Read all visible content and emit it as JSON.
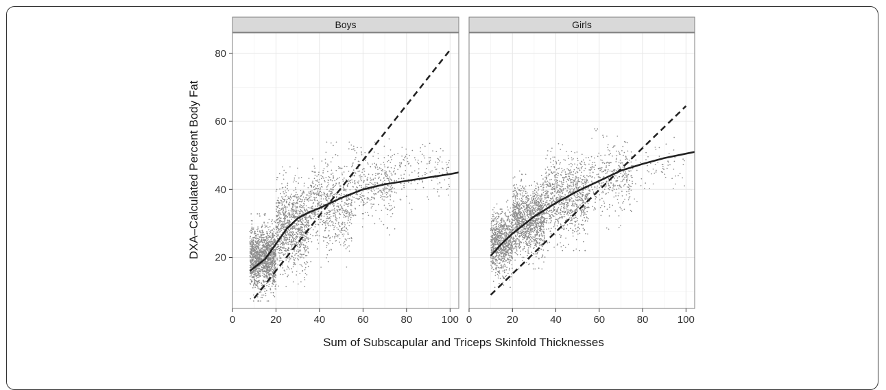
{
  "chart_data": {
    "type": "scatter",
    "xlabel": "Sum of Subscapular and Triceps Skinfold Thicknesses",
    "ylabel": "DXA–Calculated Percent Body Fat",
    "xlim": [
      0,
      104
    ],
    "ylim": [
      5,
      86
    ],
    "x_ticks": [
      0,
      20,
      40,
      60,
      80,
      100
    ],
    "x_tick_labels": [
      "0",
      "20",
      "40",
      "60",
      "80",
      "100"
    ],
    "y_ticks": [
      20,
      40,
      60,
      80
    ],
    "y_tick_labels": [
      "20",
      "40",
      "60",
      "80"
    ],
    "grid": true,
    "colors": {
      "points": "#8c8c8c",
      "smooth": "#222222",
      "reference": "#222222",
      "strip": "#d9d9d9",
      "panel_border": "#7f7f7f",
      "grid_major": "#e6e6e6",
      "grid_minor": "#f2f2f2"
    },
    "panels": [
      {
        "name": "Boys",
        "smooth_line": {
          "x": [
            8,
            10,
            15,
            20,
            25,
            30,
            35,
            40,
            50,
            60,
            70,
            80,
            90,
            100,
            104
          ],
          "y": [
            16,
            17,
            19.5,
            24,
            28.5,
            31.5,
            33.2,
            34.5,
            37.5,
            40,
            41.5,
            42.5,
            43.5,
            44.5,
            45
          ]
        },
        "reference_line": {
          "x": [
            10,
            100
          ],
          "y": [
            8,
            81
          ]
        },
        "point_cloud": {
          "count": 3600,
          "bands": [
            {
              "x_range": [
                8,
                20
              ],
              "y_range": [
                12,
                28
              ],
              "weight": 0.4
            },
            {
              "x_range": [
                20,
                35
              ],
              "y_range": [
                18,
                40
              ],
              "weight": 0.28
            },
            {
              "x_range": [
                35,
                55
              ],
              "y_range": [
                24,
                47
              ],
              "weight": 0.18
            },
            {
              "x_range": [
                55,
                75
              ],
              "y_range": [
                32,
                50
              ],
              "weight": 0.1
            },
            {
              "x_range": [
                75,
                100
              ],
              "y_range": [
                38,
                53
              ],
              "weight": 0.04
            }
          ]
        }
      },
      {
        "name": "Girls",
        "smooth_line": {
          "x": [
            10,
            15,
            20,
            25,
            30,
            35,
            40,
            50,
            60,
            70,
            80,
            90,
            100,
            104
          ],
          "y": [
            20.5,
            24,
            27,
            29.5,
            32,
            34,
            36,
            39.5,
            42.5,
            45.5,
            47.5,
            49.2,
            50.5,
            51
          ]
        },
        "reference_line": {
          "x": [
            10,
            100
          ],
          "y": [
            9,
            64.5
          ]
        },
        "point_cloud": {
          "count": 3400,
          "bands": [
            {
              "x_range": [
                10,
                20
              ],
              "y_range": [
                16,
                32
              ],
              "weight": 0.25
            },
            {
              "x_range": [
                20,
                35
              ],
              "y_range": [
                22,
                40
              ],
              "weight": 0.37
            },
            {
              "x_range": [
                35,
                55
              ],
              "y_range": [
                28,
                48
              ],
              "weight": 0.26
            },
            {
              "x_range": [
                55,
                75
              ],
              "y_range": [
                34,
                53
              ],
              "weight": 0.1
            },
            {
              "x_range": [
                75,
                100
              ],
              "y_range": [
                40,
                52
              ],
              "weight": 0.02
            }
          ]
        }
      }
    ]
  }
}
